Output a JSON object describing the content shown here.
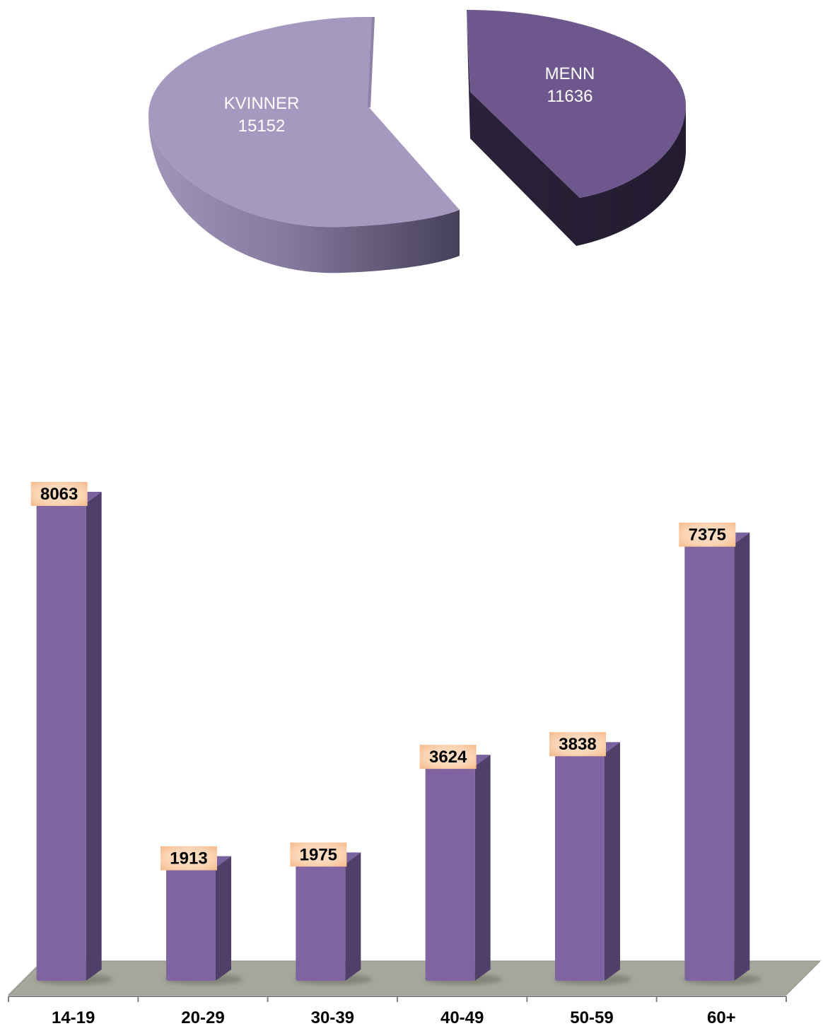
{
  "chart_data": [
    {
      "type": "pie",
      "slices": [
        {
          "label": "KVINNER",
          "value": 15152,
          "color": "#a699c0"
        },
        {
          "label": "MENN",
          "value": 11636,
          "color": "#6d578c"
        }
      ]
    },
    {
      "type": "bar",
      "categories": [
        "14-19",
        "20-29",
        "30-39",
        "40-49",
        "50-59",
        "60+"
      ],
      "values": [
        8063,
        1913,
        1975,
        3624,
        3838,
        7375
      ],
      "ylim": [
        0,
        8063
      ],
      "grid": false,
      "bar_color": "#8064a2",
      "label_bg_color": "#fbd4b4"
    }
  ]
}
